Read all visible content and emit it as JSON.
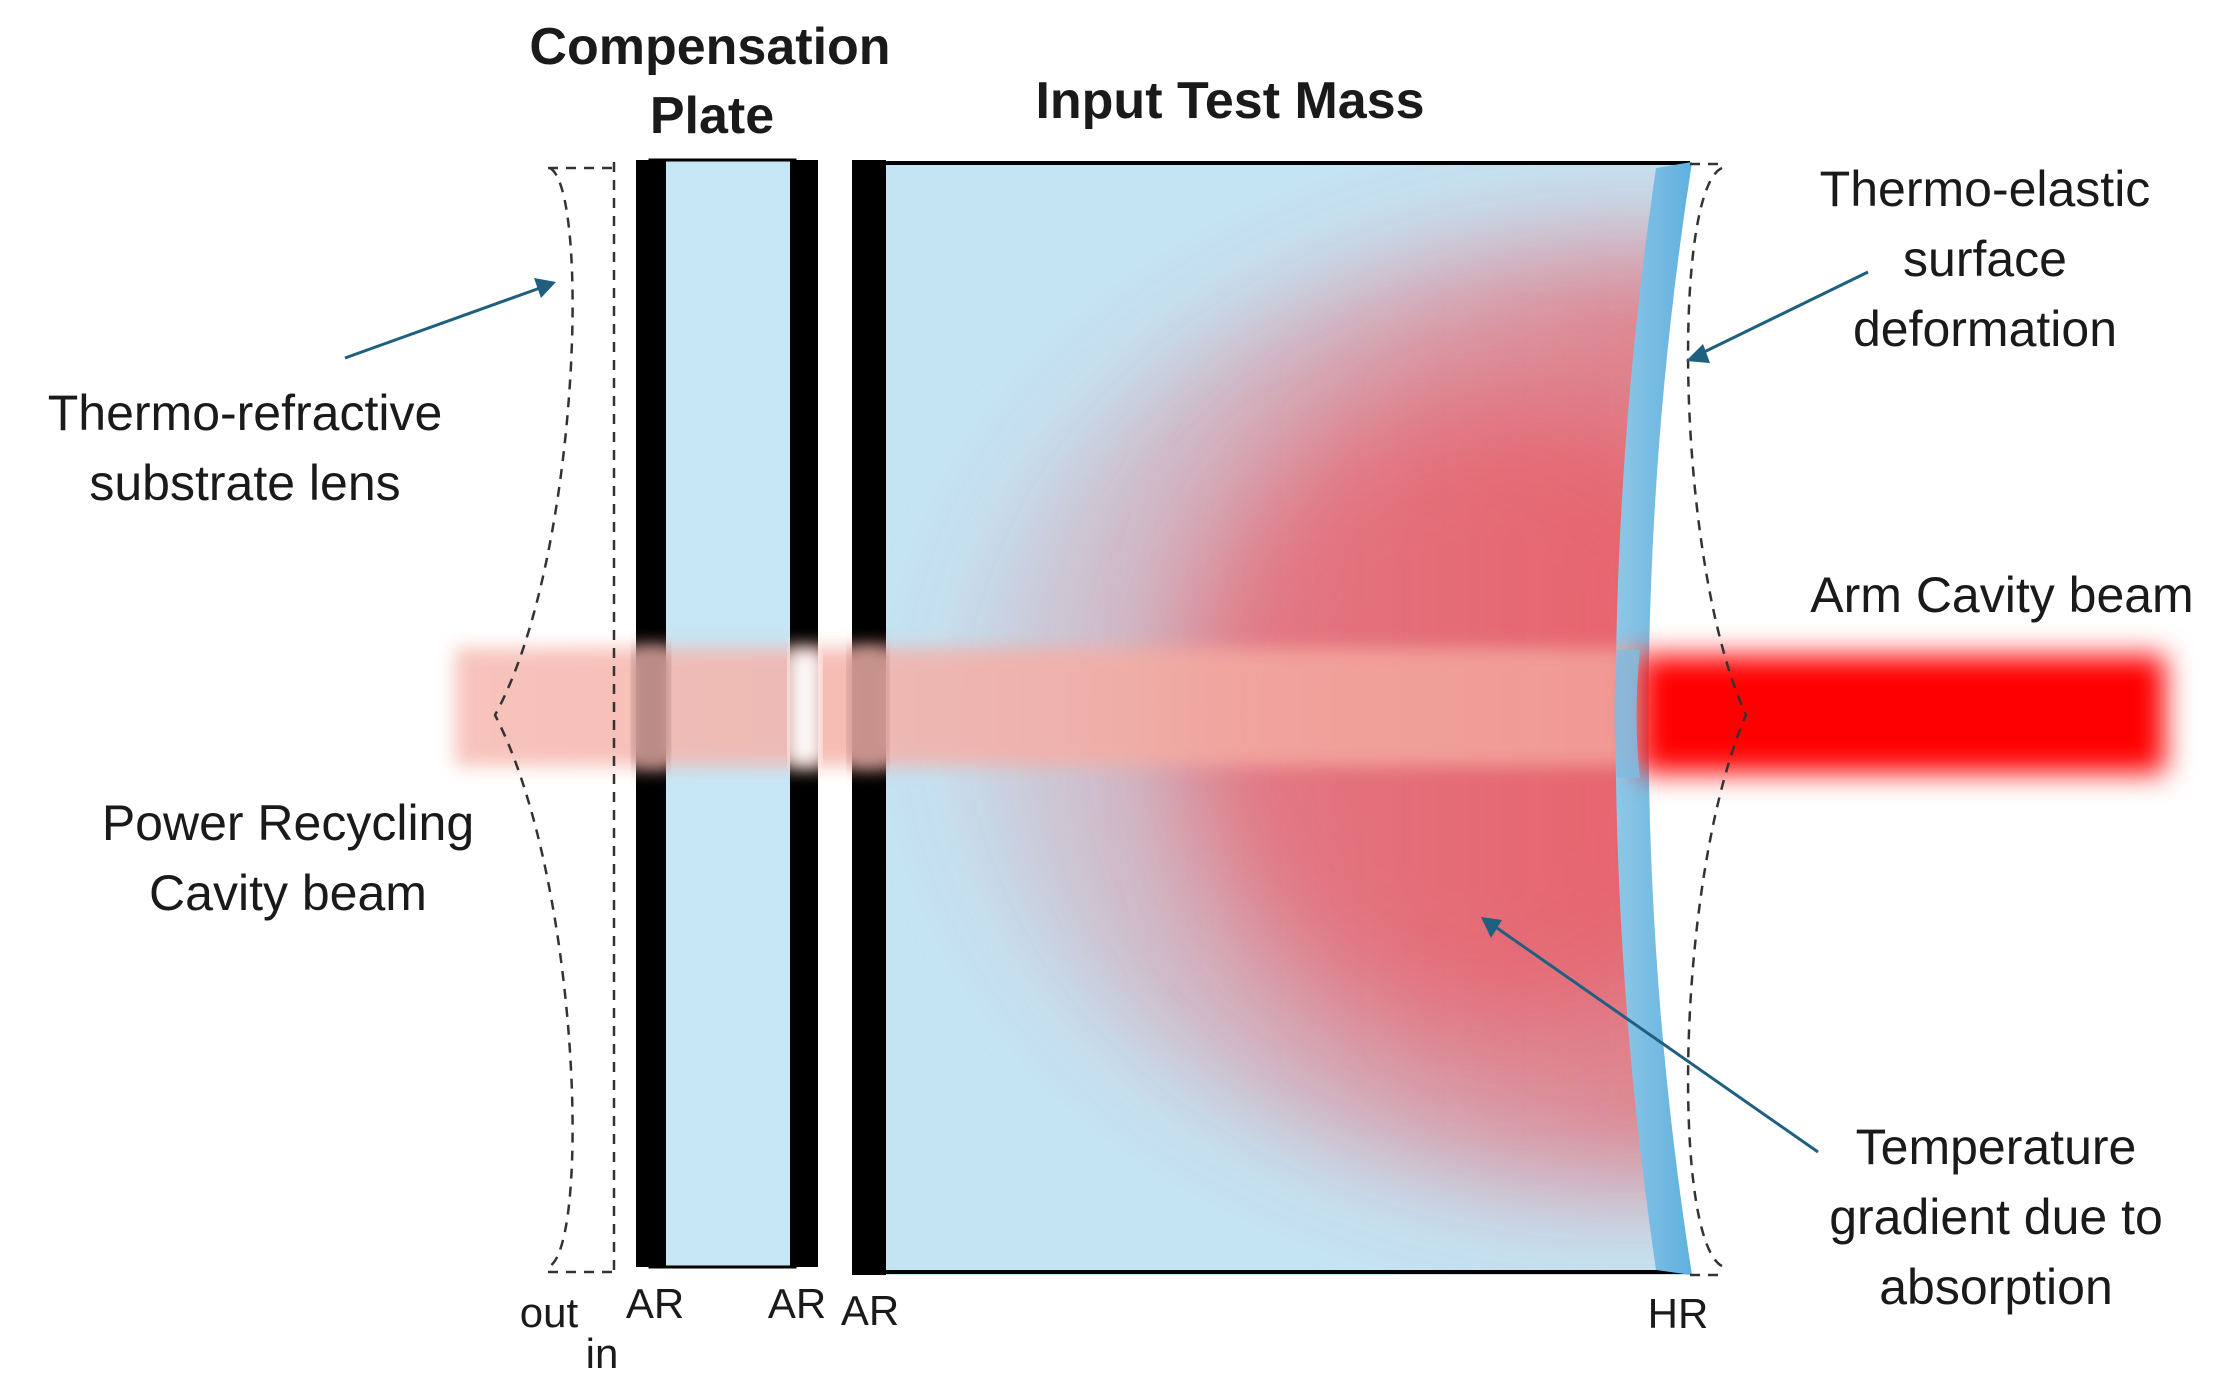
{
  "titles": {
    "compensation_plate_line1": "Compensation",
    "compensation_plate_line2": "Plate",
    "input_test_mass": "Input Test Mass"
  },
  "labels": {
    "thermo_refractive_line1": "Thermo-refractive",
    "thermo_refractive_line2": "substrate lens",
    "power_recycling_line1": "Power Recycling",
    "power_recycling_line2": "Cavity beam",
    "thermo_elastic_line1": "Thermo-elastic",
    "thermo_elastic_line2": "surface",
    "thermo_elastic_line3": "deformation",
    "arm_cavity_beam": "Arm Cavity beam",
    "temperature_line1": "Temperature",
    "temperature_line2": "gradient due to",
    "temperature_line3": "absorption"
  },
  "surface_labels": {
    "out": "out",
    "in": "in",
    "cp_ar_left": "AR",
    "cp_ar_right": "AR",
    "itm_ar": "AR",
    "itm_hr": "HR"
  },
  "colors": {
    "substrate_blue": "#c7e6f5",
    "hr_coating_blue": "#6fb8e0",
    "beam_red": "#ff0000",
    "beam_pale": "#f5a8a0",
    "heat_red": "#ee4a52",
    "arrow": "#1f5f80",
    "coating_black": "#000000"
  }
}
